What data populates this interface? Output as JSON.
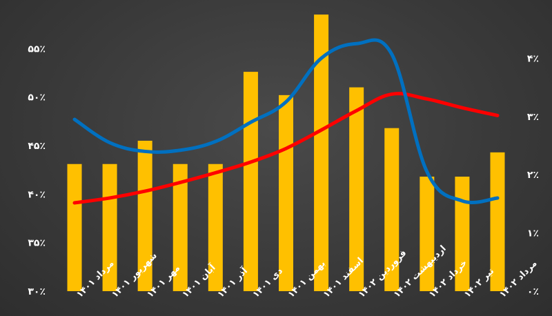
{
  "chart_data": {
    "type": "bar+line",
    "categories": [
      "مرداد ۱۴۰۱",
      "شهریور ۱۴۰۱",
      "مهر ۱۴۰۱",
      "آبان ۱۴۰۱",
      "آذر ۱۴۰۱",
      "دی ۱۴۰۱",
      "بهمن ۱۴۰۱",
      "اسفند ۱۴۰۱",
      "فروردین ۱۴۰۲",
      "اردیبهشت ۱۴۰۲",
      "خرداد ۱۴۰۲",
      "تیر ۱۴۰۲",
      "مرداد ۱۴۰۲"
    ],
    "y_left": {
      "ticks": [
        "۳۰٪",
        "۳۵٪",
        "۴۰٪",
        "۴۵٪",
        "۵۰٪",
        "۵۵٪"
      ],
      "tick_values": [
        30,
        35,
        40,
        45,
        50,
        55
      ],
      "range": [
        30,
        60
      ]
    },
    "y_right": {
      "ticks": [
        "۰٪",
        "۱٪",
        "۲٪",
        "۳٪",
        "۴٪"
      ],
      "tick_values": [
        0,
        1,
        2,
        3,
        4
      ],
      "range": [
        0,
        5
      ]
    },
    "bars": {
      "axis": "left",
      "color": "#FFC000",
      "values": [
        43.1,
        43.1,
        45.5,
        43.1,
        43.1,
        52.6,
        50.2,
        58.5,
        51.0,
        46.8,
        41.8,
        41.8,
        44.3
      ]
    },
    "lines": [
      {
        "axis": "left",
        "color": "#FF0000",
        "values": [
          39.1,
          39.6,
          40.3,
          41.2,
          42.2,
          43.3,
          44.7,
          46.6,
          48.6,
          50.3,
          49.8,
          48.9,
          48.1
        ]
      },
      {
        "axis": "right",
        "color": "#0070C0",
        "values": [
          2.95,
          2.55,
          2.4,
          2.42,
          2.57,
          2.9,
          3.25,
          4.0,
          4.25,
          4.07,
          2.05,
          1.55,
          1.6
        ]
      }
    ],
    "grid": false,
    "legend": "none"
  }
}
